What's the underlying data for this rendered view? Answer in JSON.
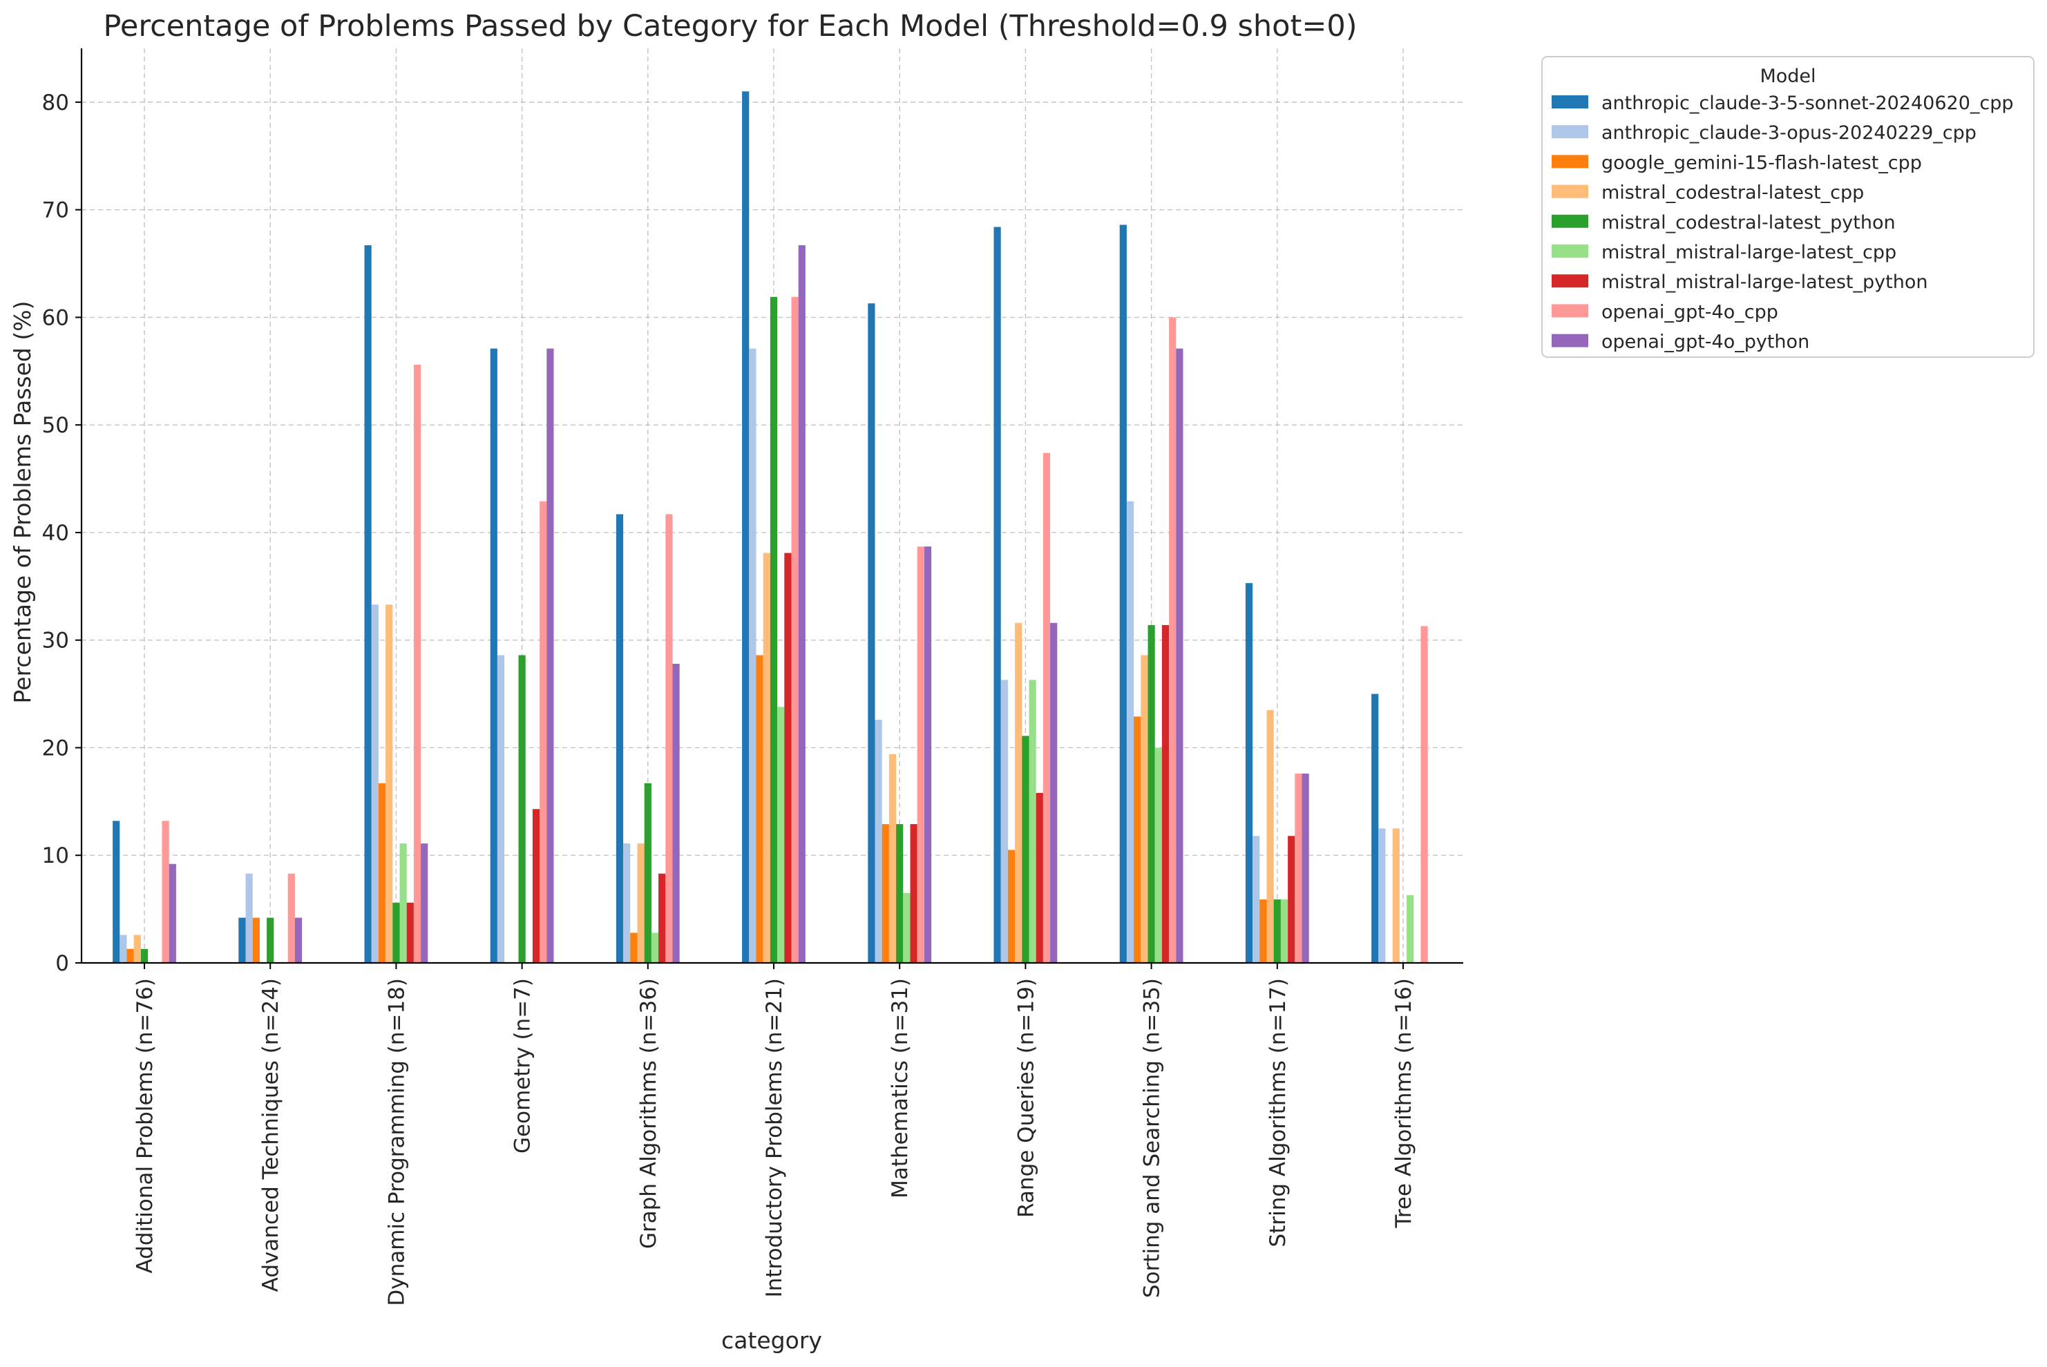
{
  "chart_data": {
    "type": "bar",
    "title": "Percentage of Problems Passed by Category for Each Model (Threshold=0.9 shot=0)",
    "xlabel": "category",
    "ylabel": "Percentage of Problems Passed (%)",
    "ylim": [
      0,
      85
    ],
    "yticks": [
      0,
      10,
      20,
      30,
      40,
      50,
      60,
      70,
      80
    ],
    "grid": true,
    "legend": {
      "title": "Model",
      "placement": "outside-top-right"
    },
    "categories": [
      "Additional Problems (n=76)",
      "Advanced Techniques (n=24)",
      "Dynamic Programming (n=18)",
      "Geometry (n=7)",
      "Graph Algorithms (n=36)",
      "Introductory Problems (n=21)",
      "Mathematics (n=31)",
      "Range Queries (n=19)",
      "Sorting and Searching (n=35)",
      "String Algorithms (n=17)",
      "Tree Algorithms (n=16)"
    ],
    "series": [
      {
        "name": "anthropic_claude-3-5-sonnet-20240620_cpp",
        "color": "#1f77b4",
        "values": [
          13.2,
          4.2,
          66.7,
          57.1,
          41.7,
          81.0,
          61.3,
          68.4,
          68.6,
          35.3,
          25.0
        ]
      },
      {
        "name": "anthropic_claude-3-opus-20240229_cpp",
        "color": "#aec7e8",
        "values": [
          2.6,
          8.3,
          33.3,
          28.6,
          11.1,
          57.1,
          22.6,
          26.3,
          42.9,
          11.8,
          12.5
        ]
      },
      {
        "name": "google_gemini-15-flash-latest_cpp",
        "color": "#ff7f0e",
        "values": [
          1.3,
          4.2,
          16.7,
          0,
          2.8,
          28.6,
          12.9,
          10.5,
          22.9,
          5.9,
          0
        ]
      },
      {
        "name": "mistral_codestral-latest_cpp",
        "color": "#ffbb78",
        "values": [
          2.6,
          0,
          33.3,
          0,
          11.1,
          38.1,
          19.4,
          31.6,
          28.6,
          23.5,
          12.5
        ]
      },
      {
        "name": "mistral_codestral-latest_python",
        "color": "#2ca02c",
        "values": [
          1.3,
          4.2,
          5.6,
          28.6,
          16.7,
          61.9,
          12.9,
          21.1,
          31.4,
          5.9,
          0
        ]
      },
      {
        "name": "mistral_mistral-large-latest_cpp",
        "color": "#98df8a",
        "values": [
          0,
          0,
          11.1,
          0,
          2.8,
          23.8,
          6.5,
          26.3,
          20.0,
          5.9,
          6.3
        ]
      },
      {
        "name": "mistral_mistral-large-latest_python",
        "color": "#d62728",
        "values": [
          0,
          0,
          5.6,
          14.3,
          8.3,
          38.1,
          12.9,
          15.8,
          31.4,
          11.8,
          0
        ]
      },
      {
        "name": "openai_gpt-4o_cpp",
        "color": "#ff9896",
        "values": [
          13.2,
          8.3,
          55.6,
          42.9,
          41.7,
          61.9,
          38.7,
          47.4,
          60.0,
          17.6,
          31.3
        ]
      },
      {
        "name": "openai_gpt-4o_python",
        "color": "#9467bd",
        "values": [
          9.2,
          4.2,
          11.1,
          57.1,
          27.8,
          66.7,
          38.7,
          31.6,
          57.1,
          17.6,
          0
        ]
      }
    ]
  }
}
